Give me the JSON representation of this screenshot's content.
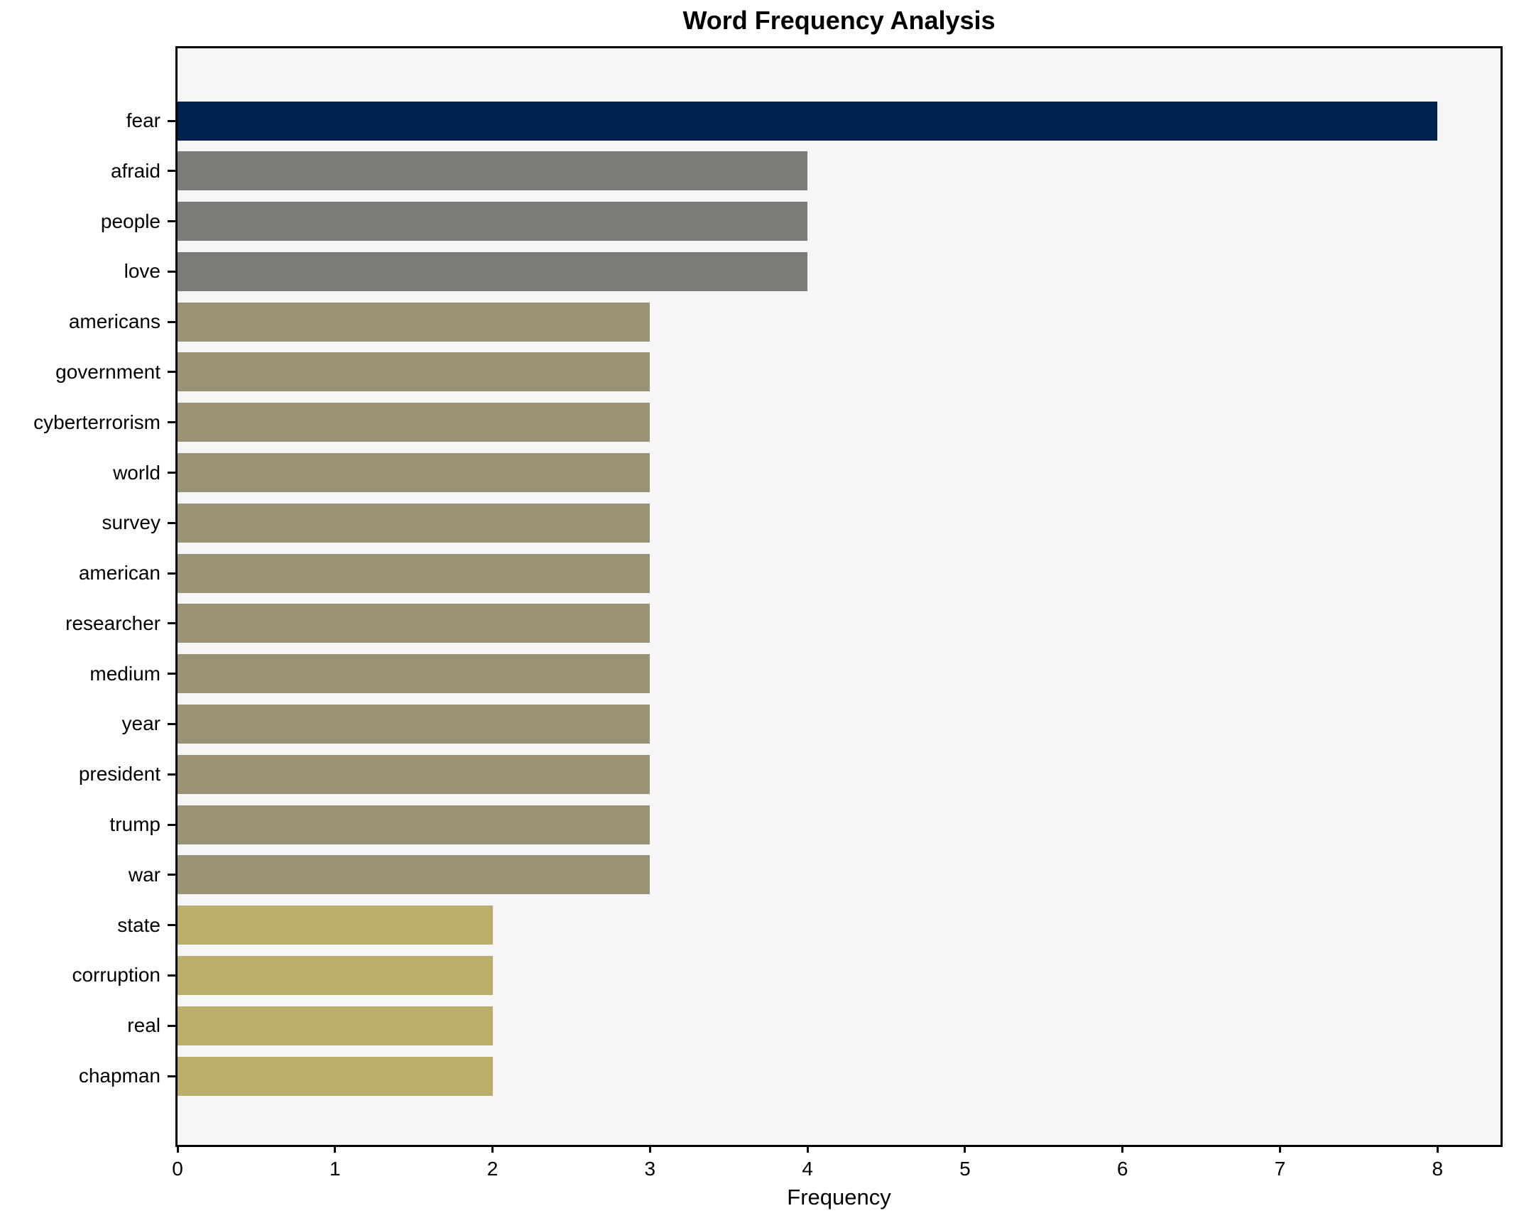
{
  "chart_data": {
    "type": "bar",
    "orientation": "horizontal",
    "title": "Word Frequency Analysis",
    "xlabel": "Frequency",
    "ylabel": "",
    "categories": [
      "fear",
      "afraid",
      "people",
      "love",
      "americans",
      "government",
      "cyberterrorism",
      "world",
      "survey",
      "american",
      "researcher",
      "medium",
      "year",
      "president",
      "trump",
      "war",
      "state",
      "corruption",
      "real",
      "chapman"
    ],
    "values": [
      8,
      4,
      4,
      4,
      3,
      3,
      3,
      3,
      3,
      3,
      3,
      3,
      3,
      3,
      3,
      3,
      2,
      2,
      2,
      2
    ],
    "bar_colors": [
      "#00224e",
      "#7b7b78",
      "#7b7b78",
      "#7b7b78",
      "#9a9274",
      "#9a9274",
      "#9a9274",
      "#9a9274",
      "#9a9274",
      "#9a9274",
      "#9a9274",
      "#9a9274",
      "#9a9274",
      "#9a9274",
      "#9a9274",
      "#9a9274",
      "#bbad6c",
      "#bbad6c",
      "#bbad6c",
      "#bbad6c"
    ],
    "xticks": [
      0,
      1,
      2,
      3,
      4,
      5,
      6,
      7,
      8
    ],
    "xlim": [
      0,
      8.4
    ],
    "grid": false,
    "legend": false,
    "plot_background": "#f6f6f6",
    "figure_background": "#ffffff",
    "spine_color": "#000000"
  }
}
